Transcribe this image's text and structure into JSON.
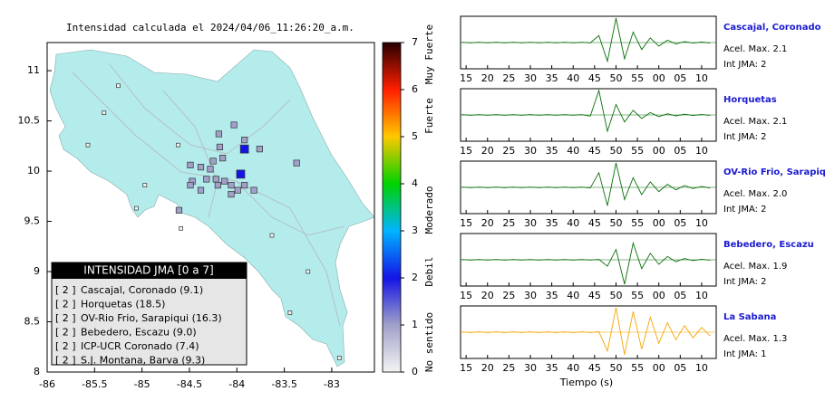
{
  "map": {
    "title": "Intensidad calculada el 2024/04/06_11:26:20_a.m.",
    "xlim": [
      -86,
      -82.55
    ],
    "ylim": [
      8,
      11.28
    ],
    "xticks": [
      -86,
      -85.5,
      -85,
      -84.5,
      -84,
      -83.5,
      -83
    ],
    "yticks": [
      8,
      8.5,
      9,
      9.5,
      10,
      10.5,
      11
    ],
    "land_color": "#b4ecec",
    "stations": [
      {
        "lon": -83.92,
        "lat": 10.22,
        "intensity": 2
      },
      {
        "lon": -83.96,
        "lat": 9.97,
        "intensity": 2
      },
      {
        "lon": -84.03,
        "lat": 10.46,
        "intensity": 1
      },
      {
        "lon": -83.92,
        "lat": 10.31,
        "intensity": 1
      },
      {
        "lon": -83.76,
        "lat": 10.22,
        "intensity": 1
      },
      {
        "lon": -84.19,
        "lat": 10.37,
        "intensity": 1
      },
      {
        "lon": -84.18,
        "lat": 10.24,
        "intensity": 1
      },
      {
        "lon": -84.25,
        "lat": 10.1,
        "intensity": 1
      },
      {
        "lon": -84.15,
        "lat": 10.13,
        "intensity": 1
      },
      {
        "lon": -83.37,
        "lat": 10.08,
        "intensity": 1
      },
      {
        "lon": -84.49,
        "lat": 10.06,
        "intensity": 1
      },
      {
        "lon": -84.38,
        "lat": 10.04,
        "intensity": 1
      },
      {
        "lon": -84.28,
        "lat": 10.02,
        "intensity": 1
      },
      {
        "lon": -84.32,
        "lat": 9.92,
        "intensity": 1
      },
      {
        "lon": -84.22,
        "lat": 9.92,
        "intensity": 1
      },
      {
        "lon": -84.13,
        "lat": 9.9,
        "intensity": 1
      },
      {
        "lon": -84.47,
        "lat": 9.9,
        "intensity": 1
      },
      {
        "lon": -84.49,
        "lat": 9.86,
        "intensity": 1
      },
      {
        "lon": -84.38,
        "lat": 9.81,
        "intensity": 1
      },
      {
        "lon": -84.2,
        "lat": 9.86,
        "intensity": 1
      },
      {
        "lon": -84.06,
        "lat": 9.86,
        "intensity": 1
      },
      {
        "lon": -83.99,
        "lat": 9.81,
        "intensity": 1
      },
      {
        "lon": -83.92,
        "lat": 9.86,
        "intensity": 1
      },
      {
        "lon": -83.82,
        "lat": 9.81,
        "intensity": 1
      },
      {
        "lon": -84.06,
        "lat": 9.77,
        "intensity": 1
      },
      {
        "lon": -84.61,
        "lat": 9.61,
        "intensity": 1
      },
      {
        "lon": -85.4,
        "lat": 10.58,
        "intensity": 0
      },
      {
        "lon": -85.57,
        "lat": 10.26,
        "intensity": 0
      },
      {
        "lon": -84.97,
        "lat": 9.86,
        "intensity": 0
      },
      {
        "lon": -84.59,
        "lat": 9.43,
        "intensity": 0
      },
      {
        "lon": -83.63,
        "lat": 9.36,
        "intensity": 0
      },
      {
        "lon": -83.25,
        "lat": 9.0,
        "intensity": 0
      },
      {
        "lon": -83.44,
        "lat": 8.59,
        "intensity": 0
      },
      {
        "lon": -82.92,
        "lat": 8.14,
        "intensity": 0
      },
      {
        "lon": -85.06,
        "lat": 9.63,
        "intensity": 0
      },
      {
        "lon": -85.25,
        "lat": 10.85,
        "intensity": 0
      },
      {
        "lon": -84.62,
        "lat": 10.26,
        "intensity": 0
      }
    ],
    "legend": {
      "title": "INTENSIDAD JMA [0 a 7]",
      "entries": [
        {
          "level": "[ 2 ]",
          "label": "Cascajal, Coronado (9.1)"
        },
        {
          "level": "[ 2 ]",
          "label": "Horquetas (18.5)"
        },
        {
          "level": "[ 2 ]",
          "label": "OV-Rio Frio, Sarapiqui (16.3)"
        },
        {
          "level": "[ 2 ]",
          "label": "Bebedero, Escazu (9.0)"
        },
        {
          "level": "[ 2 ]",
          "label": "ICP-UCR Coronado (7.4)"
        },
        {
          "level": "[ 2 ]",
          "label": "S.J. Montana, Barva (9.3)"
        }
      ]
    },
    "colorbar": {
      "lim": [
        0,
        7
      ],
      "ticks": [
        0,
        1,
        2,
        3,
        4,
        5,
        6,
        7
      ],
      "stops": [
        {
          "value": 0,
          "color": "#f4f4f4"
        },
        {
          "value": 1,
          "color": "#a0a0c8"
        },
        {
          "value": 2,
          "color": "#1414e6"
        },
        {
          "value": 3,
          "color": "#00b4ff"
        },
        {
          "value": 4,
          "color": "#00d200"
        },
        {
          "value": 5,
          "color": "#ffc800"
        },
        {
          "value": 6,
          "color": "#ff1e00"
        },
        {
          "value": 7,
          "color": "#280000"
        }
      ],
      "labels": [
        "Muy Fuerte",
        "Fuerte",
        "Moderado",
        "Debil",
        "No sentido"
      ]
    }
  },
  "seismograms": {
    "x_label": "Tiempo (s)",
    "xlim": [
      13.7,
      73.4
    ],
    "xticks": [
      15,
      20,
      25,
      30,
      35,
      40,
      45,
      50,
      55,
      {
        "value": 60,
        "label": "00"
      },
      {
        "value": 65,
        "label": "05"
      },
      {
        "value": 70,
        "label": "10"
      }
    ],
    "times": [
      14,
      16,
      18,
      20,
      22,
      24,
      26,
      28,
      30,
      32,
      34,
      36,
      38,
      40,
      42,
      44,
      46,
      48,
      50,
      52,
      54,
      56,
      58,
      60,
      62,
      64,
      66,
      68,
      70,
      72
    ],
    "traces": [
      {
        "name": "Cascajal, Coronado",
        "color": "#0a6e0a",
        "max": 2.1,
        "max_label": "Acel. Max. 2.1",
        "jma_label": "Int JMA: 2",
        "envelope": [
          0.02,
          0.02,
          0.02,
          0.02,
          0.02,
          0.02,
          0.02,
          0.02,
          0.02,
          0.02,
          0.02,
          0.02,
          0.02,
          0.02,
          0.02,
          0.03,
          0.6,
          1.6,
          2.1,
          1.4,
          0.9,
          0.6,
          0.4,
          0.3,
          0.2,
          0.12,
          0.08,
          0.05,
          0.04,
          0.03
        ]
      },
      {
        "name": "Horquetas",
        "color": "#0a6e0a",
        "max": 2.1,
        "max_label": "Acel. Max. 2.1",
        "jma_label": "Int JMA: 2",
        "envelope": [
          0.02,
          0.02,
          0.02,
          0.02,
          0.02,
          0.02,
          0.02,
          0.02,
          0.02,
          0.02,
          0.02,
          0.02,
          0.02,
          0.02,
          0.02,
          0.1,
          2.1,
          1.4,
          0.9,
          0.6,
          0.4,
          0.3,
          0.2,
          0.15,
          0.1,
          0.08,
          0.06,
          0.04,
          0.03,
          0.03
        ]
      },
      {
        "name": "OV-Rio Frio, Sarapiqui",
        "color": "#0a6e0a",
        "max": 2.0,
        "max_label": "Acel. Max. 2.0",
        "jma_label": "Int JMA: 2",
        "envelope": [
          0.02,
          0.02,
          0.02,
          0.02,
          0.02,
          0.02,
          0.02,
          0.02,
          0.02,
          0.02,
          0.02,
          0.02,
          0.02,
          0.02,
          0.02,
          0.05,
          1.2,
          1.5,
          2.0,
          1.0,
          0.8,
          0.6,
          0.45,
          0.35,
          0.25,
          0.2,
          0.15,
          0.1,
          0.08,
          0.06
        ]
      },
      {
        "name": "Bebedero, Escazu",
        "color": "#0a6e0a",
        "max": 1.9,
        "max_label": "Acel. Max. 1.9",
        "jma_label": "Int JMA: 2",
        "envelope": [
          0.02,
          0.02,
          0.02,
          0.02,
          0.02,
          0.02,
          0.02,
          0.02,
          0.02,
          0.02,
          0.02,
          0.02,
          0.02,
          0.02,
          0.02,
          0.02,
          0.03,
          0.5,
          0.8,
          1.9,
          1.3,
          0.7,
          0.5,
          0.35,
          0.25,
          0.15,
          0.1,
          0.06,
          0.04,
          0.03
        ]
      },
      {
        "name": "La Sabana",
        "color": "#f5a500",
        "max": 1.3,
        "max_label": "Acel. Max. 1.3",
        "jma_label": "Int JMA: 1",
        "envelope": [
          0.02,
          0.02,
          0.02,
          0.02,
          0.02,
          0.02,
          0.02,
          0.02,
          0.02,
          0.02,
          0.02,
          0.02,
          0.02,
          0.02,
          0.02,
          0.02,
          0.03,
          1.0,
          1.3,
          1.2,
          1.1,
          0.9,
          0.8,
          0.6,
          0.5,
          0.4,
          0.35,
          0.3,
          0.25,
          0.2
        ]
      }
    ]
  }
}
